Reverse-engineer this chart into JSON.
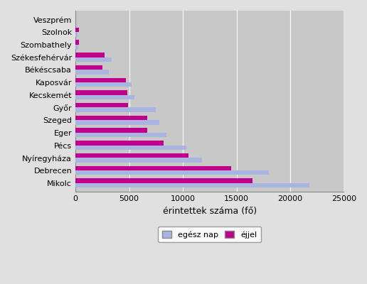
{
  "cities": [
    "Veszprém",
    "Szolnok",
    "Szombathely",
    "Székesfehérvár",
    "Békéscsaba",
    "Kaposvár",
    "Kecskemét",
    "Győr",
    "Szeged",
    "Eger",
    "Pécs",
    "Nyíregyháza",
    "Debrecen",
    "Mikolc"
  ],
  "egész_nap": [
    0,
    200,
    250,
    3400,
    3100,
    5200,
    5500,
    7500,
    7800,
    8500,
    10300,
    11800,
    18000,
    21800
  ],
  "éjjel": [
    0,
    350,
    350,
    2700,
    2500,
    4700,
    4800,
    4900,
    6700,
    6700,
    8200,
    10500,
    14500,
    16500
  ],
  "bar_color_egész": "#aab4e0",
  "bar_color_éjjel": "#c0008c",
  "xlabel": "érintettek száma (fő)",
  "xlim": [
    0,
    25000
  ],
  "xticks": [
    0,
    5000,
    10000,
    15000,
    20000,
    25000
  ],
  "legend_egész": "egész nap",
  "legend_éjjel": "éjjel",
  "plot_bg_color": "#c8c8c8",
  "fig_bg_color": "#e0e0e0",
  "grid_color": "#ffffff"
}
